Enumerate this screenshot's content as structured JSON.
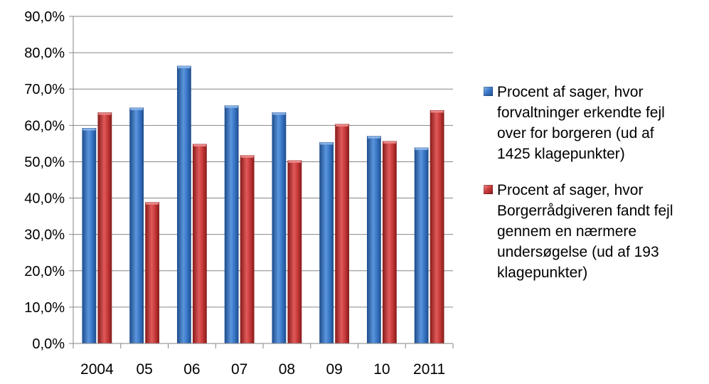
{
  "colors": {
    "series1": "#3a78c8",
    "series1_dark": "#1f4f8f",
    "series1_light": "#8fb8ea",
    "series2": "#c83a3a",
    "series2_dark": "#8a1c1c",
    "series2_light": "#ee8f8f",
    "axis": "#868686",
    "grid": "#868686"
  },
  "chart_data": {
    "type": "bar",
    "categories": [
      "2004",
      "05",
      "06",
      "07",
      "08",
      "09",
      "10",
      "2011"
    ],
    "ylim": [
      0,
      90
    ],
    "yticks": [
      "0,0%",
      "10,0%",
      "20,0%",
      "30,0%",
      "40,0%",
      "50,0%",
      "60,0%",
      "70,0%",
      "80,0%",
      "90,0%"
    ],
    "grid": true,
    "legend_position": "right",
    "series": [
      {
        "name": "Procent af sager, hvor forvaltninger erkendte fejl over for borgeren (ud af 1425 klagepunkter)",
        "values": [
          59.2,
          64.8,
          76.3,
          65.4,
          63.5,
          55.3,
          57.0,
          53.8
        ]
      },
      {
        "name": "Procent af sager, hvor Borgerrådgiveren fandt fejl gennem en nærmere undersøgelse (ud af 193 klagepunkter)",
        "values": [
          63.5,
          38.8,
          54.8,
          51.7,
          50.3,
          60.3,
          55.6,
          64.1
        ]
      }
    ]
  },
  "legend": {
    "items": [
      {
        "lines": [
          "Procent af sager, hvor",
          "forvaltninger erkendte fejl",
          "over for borgeren (ud af",
          "1425 klagepunkter)"
        ]
      },
      {
        "lines": [
          "Procent af sager, hvor",
          "Borgerrådgiveren fandt fejl",
          "gennem en nærmere",
          "undersøgelse (ud af 193",
          "klagepunkter)"
        ]
      }
    ]
  }
}
